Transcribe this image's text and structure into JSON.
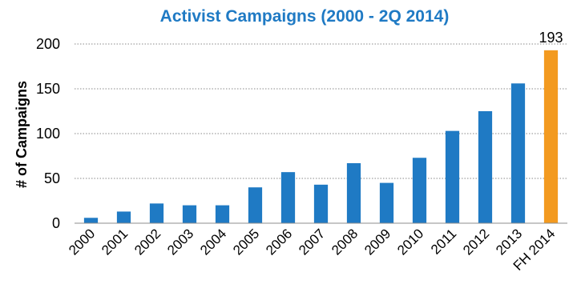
{
  "chart_data": {
    "type": "bar",
    "title": "Activist Campaigns (2000 - 2Q 2014)",
    "ylabel": "# of Campaigns",
    "xlabel": "",
    "ylim": [
      0,
      200
    ],
    "yticks": [
      0,
      50,
      100,
      150,
      200
    ],
    "grid": true,
    "categories": [
      "2000",
      "2001",
      "2002",
      "2003",
      "2004",
      "2005",
      "2006",
      "2007",
      "2008",
      "2009",
      "2010",
      "2011",
      "2012",
      "2013",
      "FH 2014"
    ],
    "values": [
      6,
      13,
      22,
      20,
      20,
      40,
      57,
      43,
      67,
      45,
      73,
      103,
      125,
      156,
      193
    ],
    "bar_colors": [
      "#1f7ac4",
      "#1f7ac4",
      "#1f7ac4",
      "#1f7ac4",
      "#1f7ac4",
      "#1f7ac4",
      "#1f7ac4",
      "#1f7ac4",
      "#1f7ac4",
      "#1f7ac4",
      "#1f7ac4",
      "#1f7ac4",
      "#1f7ac4",
      "#1f7ac4",
      "#f39a1f"
    ],
    "data_labels": [
      {
        "category": "FH 2014",
        "value": 193,
        "text": "193"
      }
    ]
  }
}
